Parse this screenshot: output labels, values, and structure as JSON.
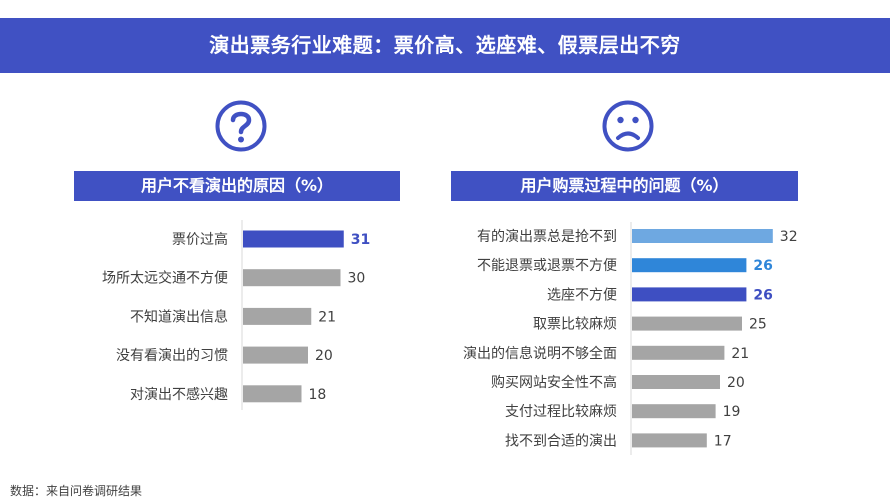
{
  "header": {
    "title": "演出票务行业难题：票价高、选座难、假票层出不穷"
  },
  "left_panel": {
    "icon": "question-icon",
    "title": "用户不看演出的原因（%）"
  },
  "right_panel": {
    "icon": "sad-face-icon",
    "title": "用户购票过程中的问题（%）"
  },
  "colors": {
    "banner": "#4051c3",
    "highlight_dark": "#3e4fc2",
    "highlight_mid": "#2f86d9",
    "highlight_light": "#6ea8e1",
    "bar_gray": "#a5a5a5"
  },
  "chart_data": [
    {
      "type": "bar",
      "orientation": "horizontal",
      "title": "用户不看演出的原因（%）",
      "categories": [
        "票价过高",
        "场所太远交通不方便",
        "不知道演出信息",
        "没有看演出的习惯",
        "对演出不感兴趣"
      ],
      "values": [
        31,
        30,
        21,
        20,
        18
      ],
      "colors": [
        "#3e4fc2",
        "#a5a5a5",
        "#a5a5a5",
        "#a5a5a5",
        "#a5a5a5"
      ],
      "highlight": [
        true,
        false,
        false,
        false,
        false
      ],
      "grid": false
    },
    {
      "type": "bar",
      "orientation": "horizontal",
      "title": "用户购票过程中的问题（%）",
      "categories": [
        "有的演出票总是抢不到",
        "不能退票或退票不方便",
        "选座不方便",
        "取票比较麻烦",
        "演出的信息说明不够全面",
        "购买网站安全性不高",
        "支付过程比较麻烦",
        "找不到合适的演出"
      ],
      "values": [
        32,
        26,
        26,
        25,
        21,
        20,
        19,
        17
      ],
      "colors": [
        "#6ea8e1",
        "#2f86d9",
        "#3e4fc2",
        "#a5a5a5",
        "#a5a5a5",
        "#a5a5a5",
        "#a5a5a5",
        "#a5a5a5"
      ],
      "highlight": [
        false,
        true,
        true,
        false,
        false,
        false,
        false,
        false
      ],
      "grid": false
    }
  ],
  "footer": {
    "source": "数据：来自问卷调研结果"
  }
}
